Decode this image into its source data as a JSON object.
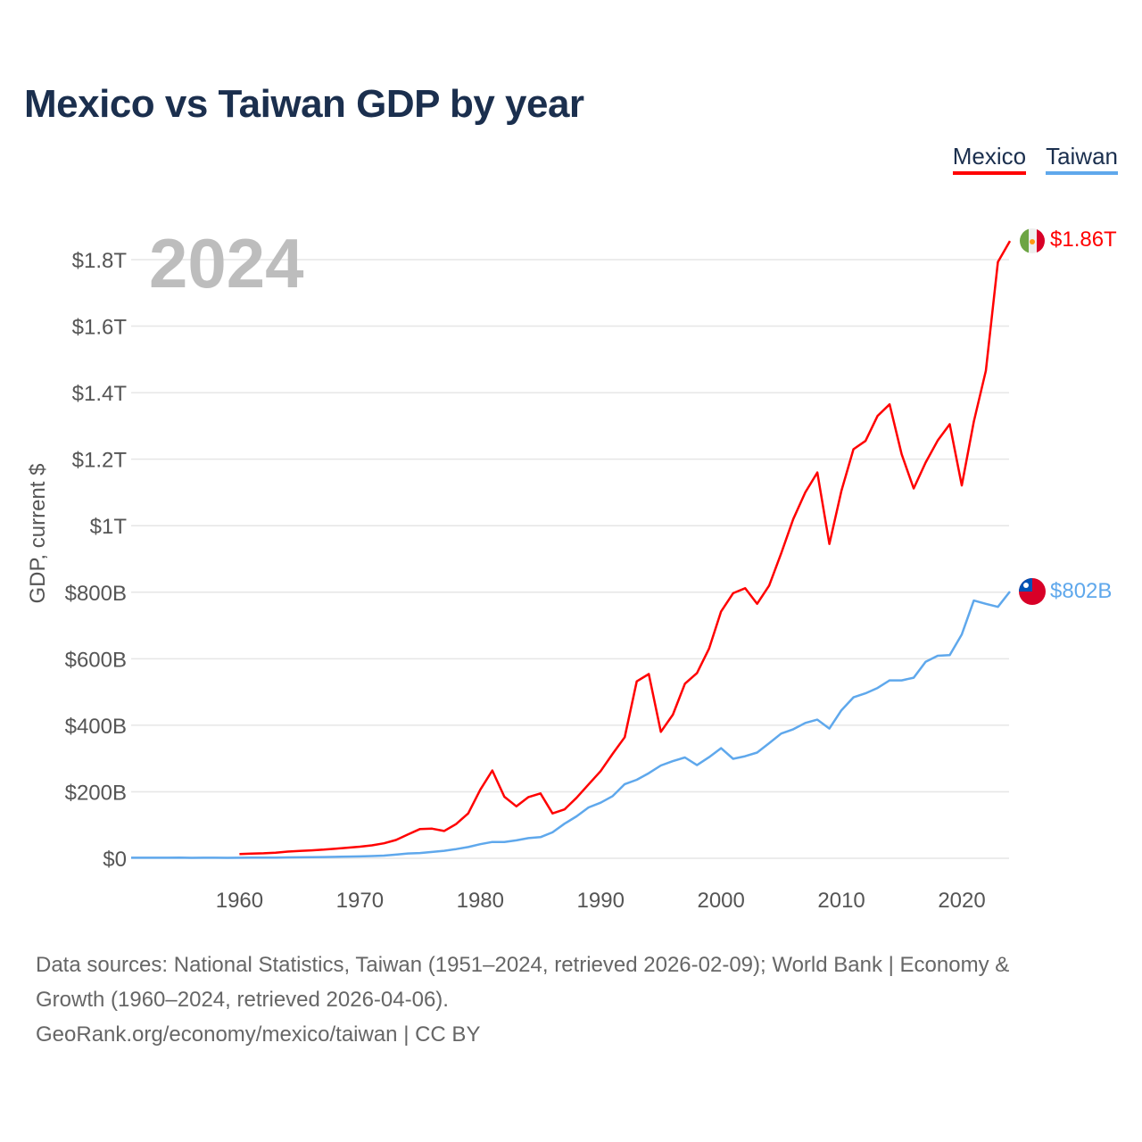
{
  "title": "Mexico vs Taiwan GDP by year",
  "legend": [
    "Mexico",
    "Taiwan"
  ],
  "year_label": "2024",
  "end_labels": {
    "mexico": "$1.86T",
    "taiwan": "$802B"
  },
  "footer": {
    "line1": "Data sources: National Statistics, Taiwan (1951–2024, retrieved 2026-02-09); World Bank | Economy &",
    "line2": "Growth (1960–2024, retrieved 2026-04-06).",
    "line3": "GeoRank.org/economy/mexico/taiwan | CC BY"
  },
  "colors": {
    "mexico": "#ff0000",
    "taiwan": "#5fa8ec",
    "grid": "#e6e6e6"
  },
  "chart_data": {
    "type": "line",
    "title": "Mexico vs Taiwan GDP by year",
    "xlabel": "",
    "ylabel": "GDP, current $",
    "xlim": [
      1951,
      2024
    ],
    "ylim": [
      0,
      1800
    ],
    "y_unit": "billion USD",
    "x_ticks": [
      1960,
      1970,
      1980,
      1990,
      2000,
      2010,
      2020
    ],
    "y_ticks": [
      0,
      200,
      400,
      600,
      800,
      1000,
      1200,
      1400,
      1600,
      1800
    ],
    "y_tick_labels": [
      "$0",
      "$200B",
      "$400B",
      "$600B",
      "$800B",
      "$1T",
      "$1.2T",
      "$1.4T",
      "$1.6T",
      "$1.8T"
    ],
    "grid": true,
    "legend_position": "top-right",
    "series": [
      {
        "name": "Mexico",
        "start_year": 1960,
        "values": [
          13,
          14,
          15,
          17,
          20,
          22,
          24,
          26,
          29,
          32,
          35,
          39,
          45,
          55,
          72,
          88,
          89,
          82,
          103,
          135,
          206,
          264,
          185,
          156,
          184,
          195,
          135,
          147,
          182,
          222,
          262,
          314,
          364,
          532,
          554,
          380,
          432,
          525,
          557,
          630,
          742,
          797,
          812,
          765,
          820,
          917,
          1020,
          1100,
          1160,
          945,
          1105,
          1230,
          1255,
          1330,
          1365,
          1215,
          1112,
          1190,
          1256,
          1305,
          1121,
          1313,
          1466,
          1793,
          1856
        ]
      },
      {
        "name": "Taiwan",
        "start_year": 1951,
        "values": [
          1.7,
          1.7,
          1.5,
          1.6,
          1.9,
          1.4,
          1.6,
          1.7,
          1.4,
          1.7,
          1.8,
          1.9,
          2.2,
          2.6,
          2.9,
          3.2,
          3.7,
          4.3,
          5.0,
          5.7,
          6.7,
          8.1,
          11,
          14.6,
          15.7,
          19,
          22.5,
          27.7,
          33.8,
          42.3,
          49,
          49,
          54,
          60.6,
          63.6,
          78,
          104,
          126,
          153,
          167,
          187,
          223,
          236,
          256,
          279,
          292,
          303,
          280,
          304,
          331,
          299,
          307,
          318,
          346,
          375,
          388,
          407,
          417,
          390,
          445,
          484,
          496,
          512,
          535,
          535,
          543,
          591,
          609,
          611,
          673,
          775,
          765,
          756,
          802
        ]
      }
    ]
  }
}
